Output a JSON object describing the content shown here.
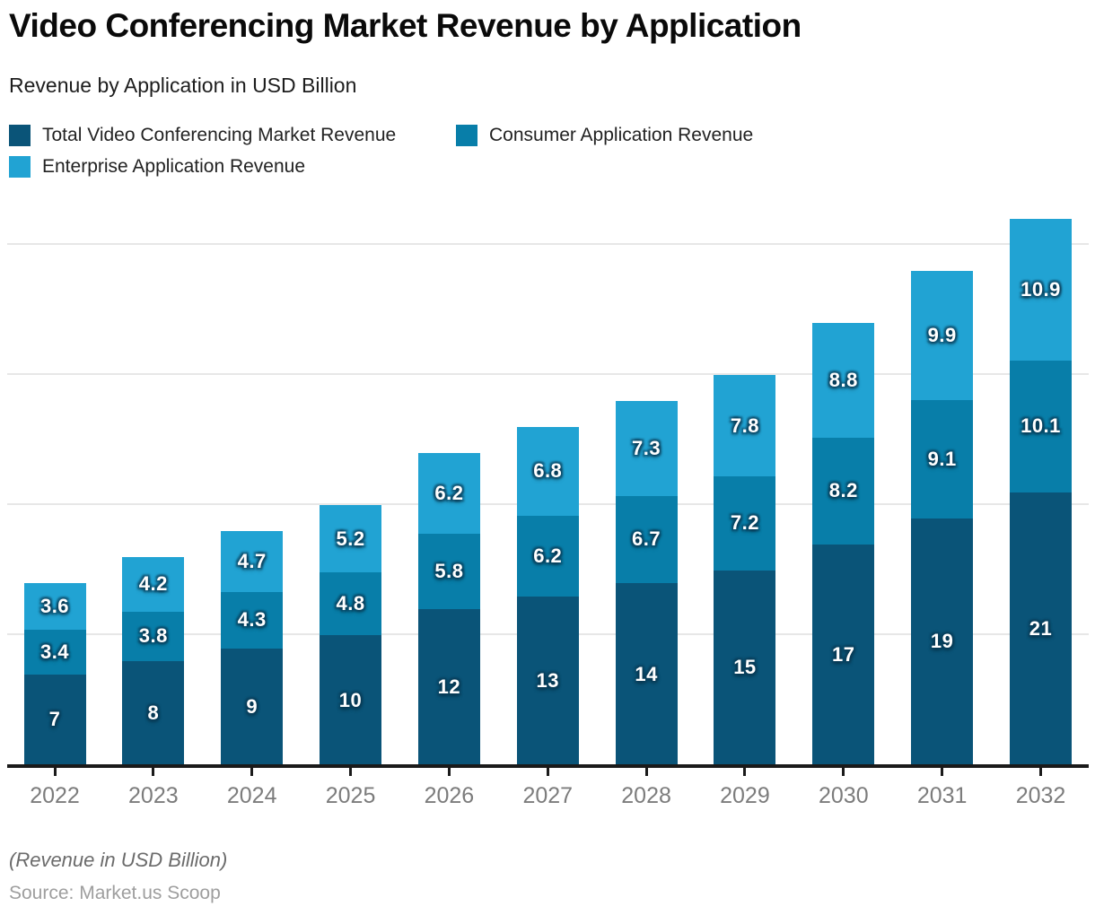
{
  "header": {
    "title": "Video Conferencing Market Revenue by Application",
    "subtitle": "Revenue by Application in USD Billion"
  },
  "legend": {
    "items": [
      {
        "label": "Total Video Conferencing Market Revenue",
        "color": "#0a5478"
      },
      {
        "label": "Consumer Application Revenue",
        "color": "#087ea9"
      },
      {
        "label": "Enterprise Application Revenue",
        "color": "#21a3d3"
      }
    ]
  },
  "chart_data": {
    "type": "bar",
    "stacked": true,
    "title": "Video Conferencing Market Revenue by Application",
    "xlabel": "",
    "ylabel": "",
    "categories": [
      "2022",
      "2023",
      "2024",
      "2025",
      "2026",
      "2027",
      "2028",
      "2029",
      "2030",
      "2031",
      "2032"
    ],
    "series": [
      {
        "name": "Total Video Conferencing Market Revenue",
        "color": "#0a5478",
        "values": [
          7,
          8,
          9,
          10,
          12,
          13,
          14,
          15,
          17,
          19,
          21
        ]
      },
      {
        "name": "Consumer Application Revenue",
        "color": "#087ea9",
        "values": [
          3.4,
          3.8,
          4.3,
          4.8,
          5.8,
          6.2,
          6.7,
          7.2,
          8.2,
          9.1,
          10.1
        ]
      },
      {
        "name": "Enterprise Application Revenue",
        "color": "#21a3d3",
        "values": [
          3.6,
          4.2,
          4.7,
          5.2,
          6.2,
          6.8,
          7.3,
          7.8,
          8.8,
          9.9,
          10.9
        ]
      }
    ],
    "bar_value_labels": true,
    "ylim": [
      0,
      43
    ],
    "gridline_values": [
      10,
      20,
      30,
      40
    ],
    "grid": "horizontal-only",
    "y_axis_labels_shown": false,
    "legend_position": "top-left"
  },
  "footer": {
    "note": "(Revenue in USD Billion)",
    "source": "Source: Market.us Scoop"
  }
}
